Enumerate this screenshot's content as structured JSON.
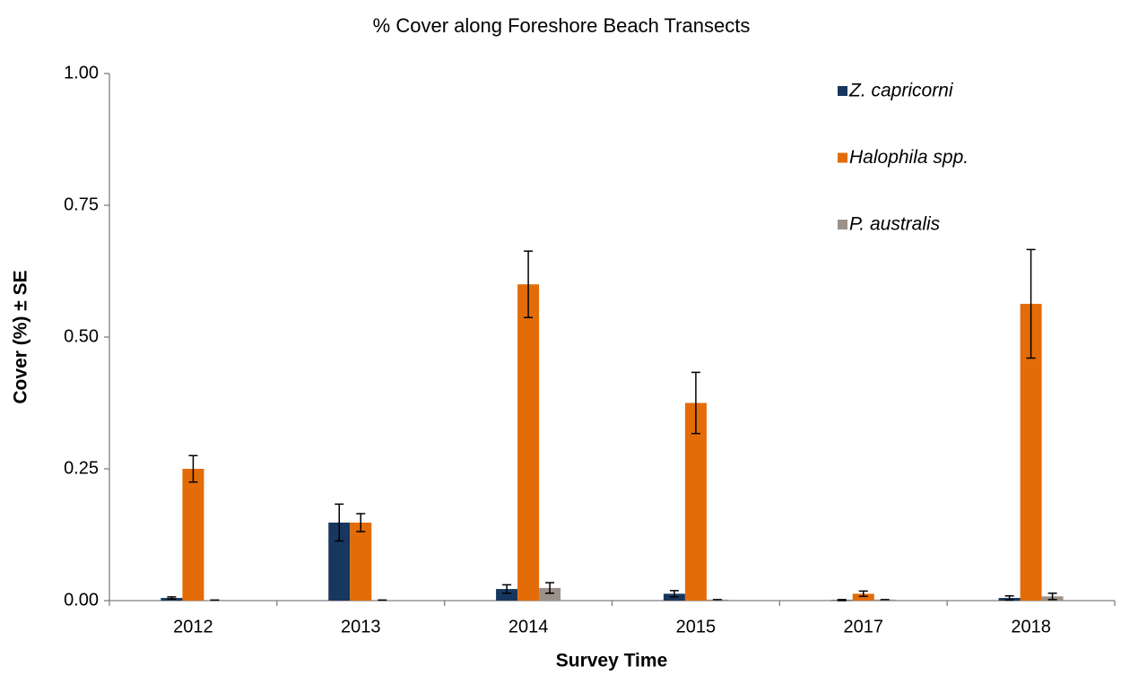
{
  "chart_data": {
    "type": "bar",
    "title": "% Cover along Foreshore Beach Transects",
    "x_label": "Survey Time",
    "y_label": "Cover (%) ± SE",
    "categories": [
      "2012",
      "2013",
      "2014",
      "2015",
      "2017",
      "2018"
    ],
    "series": [
      {
        "name": "Z. capricorni",
        "color": "#17375e",
        "values": [
          0.005,
          0.148,
          0.022,
          0.013,
          0.001,
          0.005
        ],
        "errors": [
          0.002,
          0.035,
          0.008,
          0.006,
          0.001,
          0.004
        ]
      },
      {
        "name": "Halophila spp.",
        "color": "#e36c09",
        "values": [
          0.25,
          0.148,
          0.6,
          0.375,
          0.013,
          0.563
        ],
        "errors": [
          0.025,
          0.017,
          0.063,
          0.058,
          0.005,
          0.103
        ]
      },
      {
        "name": "P. australis",
        "color": "#9b9189",
        "values": [
          0.001,
          0.001,
          0.024,
          0.002,
          0.002,
          0.008
        ],
        "errors": [
          0,
          0,
          0.01,
          0,
          0,
          0.006
        ]
      }
    ],
    "ylim": [
      0,
      1
    ],
    "yticks": [
      {
        "value": 0,
        "label": "0.00"
      },
      {
        "value": 0.25,
        "label": "0.25"
      },
      {
        "value": 0.5,
        "label": "0.50"
      },
      {
        "value": 0.75,
        "label": "0.75"
      },
      {
        "value": 1,
        "label": "1.00"
      }
    ],
    "legend": "top-right"
  }
}
